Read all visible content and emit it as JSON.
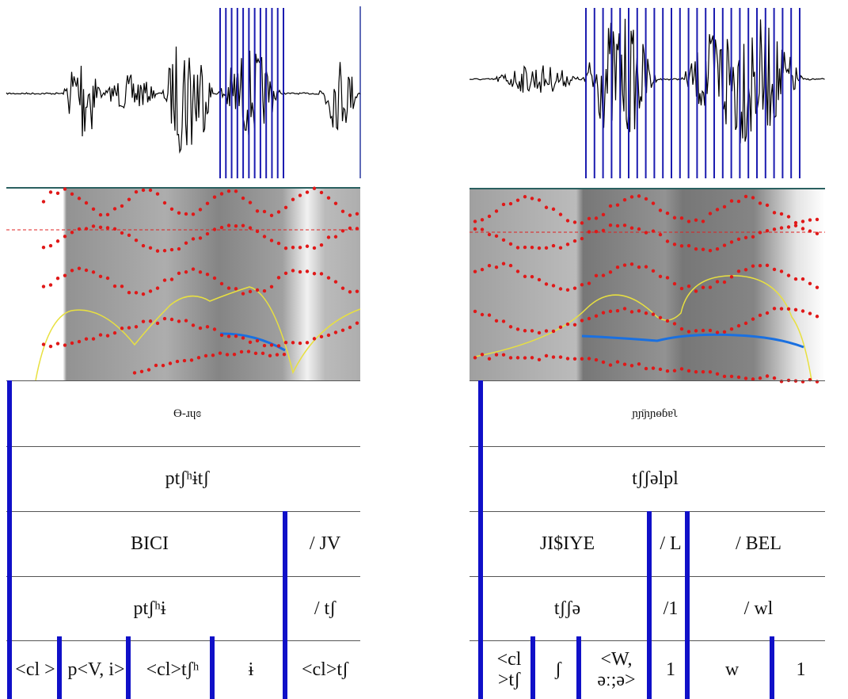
{
  "panels": [
    {
      "tiers": [
        [
          "ϴ-ɹɥɞ"
        ],
        [
          "ptʃʰɨtʃ"
        ],
        [
          "BICI",
          "/ JV"
        ],
        [
          "ptʃʰɨ",
          "/ tʃ"
        ],
        [
          "<cl >",
          "p<V, i>",
          "<cl>tʃʰ",
          "ɨ",
          "<cl>tʃ"
        ]
      ]
    },
    {
      "tiers": [
        [
          "ɲɲ̈ɲɲɵɓɐʅ"
        ],
        [
          "tʃʃəlpl"
        ],
        [
          "JI$IYE",
          "/ L",
          "/ BEL"
        ],
        [
          "tʃʃə",
          "/1",
          "/ wl"
        ],
        [
          "<cl >tʃ",
          "ʃ",
          "<W, əː;ə>",
          "1",
          "w",
          "1"
        ]
      ]
    }
  ]
}
